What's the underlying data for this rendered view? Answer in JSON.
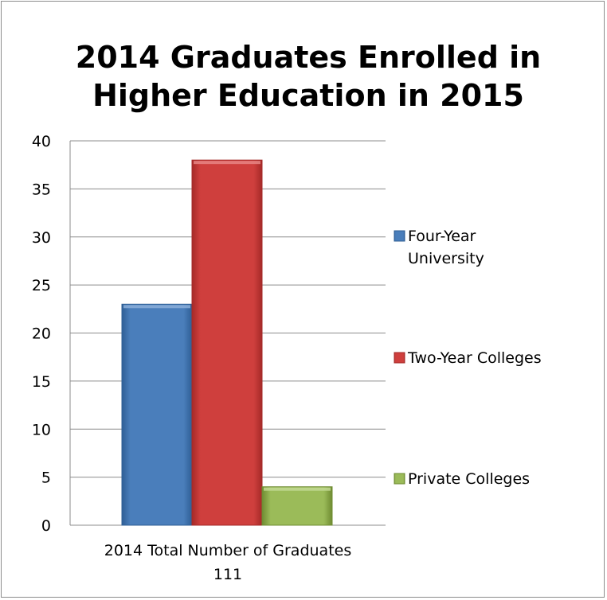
{
  "chart_data": {
    "type": "bar",
    "title_lines": [
      "2014 Graduates Enrolled in",
      "Higher Education in 2015"
    ],
    "category_label_lines": [
      "2014 Total Number of Graduates",
      "111"
    ],
    "ylim": [
      0,
      40
    ],
    "yticks": [
      0,
      5,
      10,
      15,
      20,
      25,
      30,
      35,
      40
    ],
    "grid": true,
    "legend_position": "right",
    "series": [
      {
        "name": "Four-Year University",
        "name_lines": [
          "Four-Year",
          "University"
        ],
        "value": 23,
        "color": "#4a7ebb",
        "dark": "#2f5f96",
        "light": "#8fb1dc"
      },
      {
        "name": "Two-Year Colleges",
        "name_lines": [
          "Two-Year Colleges"
        ],
        "value": 38,
        "color": "#cf3f3d",
        "dark": "#a52a28",
        "light": "#e98a88"
      },
      {
        "name": "Private Colleges",
        "name_lines": [
          "Private Colleges"
        ],
        "value": 4,
        "color": "#9bbb59",
        "dark": "#6f8c32",
        "light": "#c6dc97"
      }
    ]
  }
}
